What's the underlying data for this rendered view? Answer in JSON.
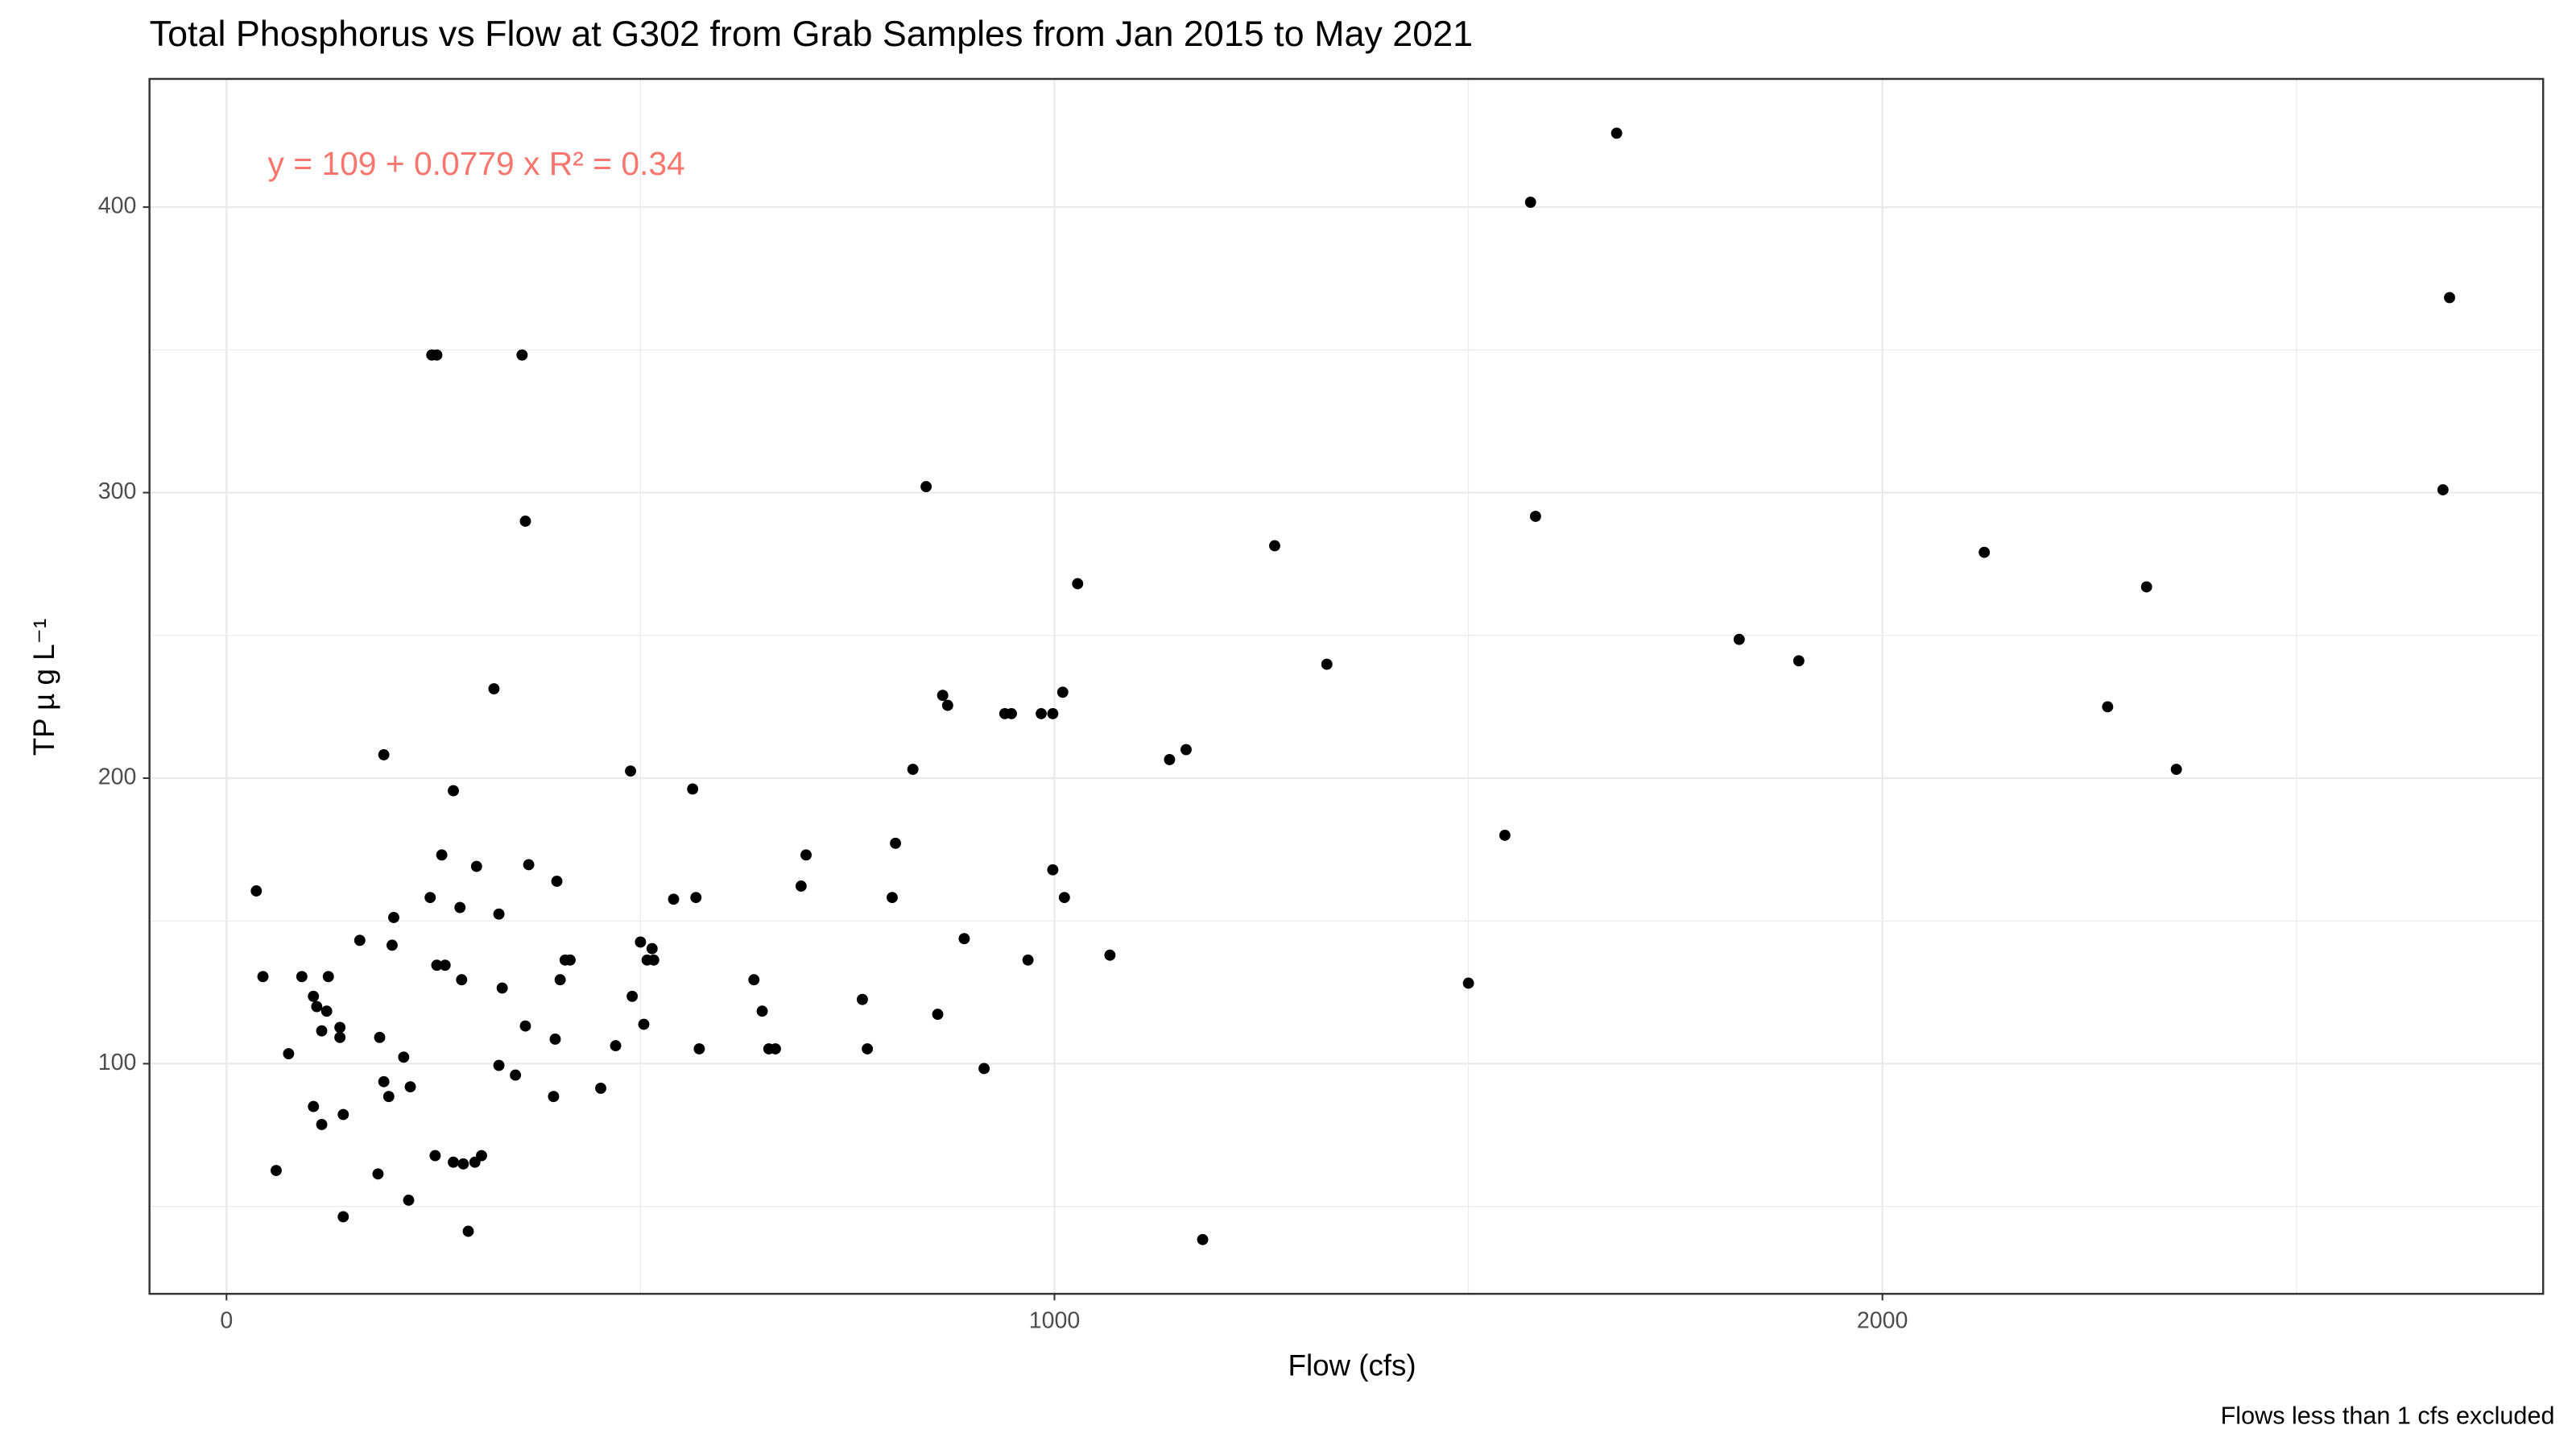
{
  "chart_data": {
    "type": "scatter",
    "title": "Total Phosphorus vs Flow at G302 from Grab Samples from Jan 2015 to May 2021",
    "x_label": "Flow (cfs)",
    "y_label": "TP µ g L⁻¹",
    "annotation": "y = 109 + 0.0779 x   R² = 0.34",
    "annotation_color": "#F8766D",
    "caption": "Flows less than 1 cfs excluded",
    "color": "#000000",
    "grid": true,
    "xlim": [
      -93,
      2798
    ],
    "ylim": [
      19.4,
      444.9
    ],
    "xticks": [
      0,
      1000,
      2000
    ],
    "yticks": [
      100,
      200,
      300,
      400
    ],
    "x_minor_ticks": [
      500,
      1500,
      2500
    ],
    "y_minor_ticks": [
      50,
      150,
      250,
      350
    ],
    "x": [
      36,
      44,
      60,
      75,
      91,
      105,
      109,
      105,
      115,
      115,
      121,
      123,
      137,
      137,
      141,
      141,
      161,
      183,
      185,
      190,
      190,
      196,
      200,
      202,
      214,
      220,
      222,
      246,
      248,
      254,
      252,
      254,
      260,
      264,
      274,
      274,
      282,
      284,
      286,
      292,
      300,
      302,
      308,
      323,
      329,
      329,
      333,
      349,
      357,
      361,
      361,
      365,
      395,
      397,
      399,
      403,
      409,
      415,
      452,
      470,
      488,
      490,
      500,
      504,
      508,
      516,
      514,
      540,
      563,
      567,
      571,
      637,
      647,
      655,
      663,
      694,
      700,
      768,
      774,
      804,
      808,
      829,
      845,
      859,
      865,
      871,
      891,
      915,
      940,
      948,
      968,
      984,
      998,
      998,
      1010,
      1012,
      1028,
      1067,
      1139,
      1159,
      1179,
      1266,
      1329,
      1500,
      1544,
      1575,
      1581,
      1679,
      1827,
      1899,
      2123,
      2272,
      2319,
      2355,
      2677,
      2685
    ],
    "values": [
      160.5,
      130.5,
      62.6,
      103.5,
      130.5,
      123.6,
      120,
      85,
      78.7,
      111.5,
      118.4,
      130.5,
      112.7,
      109.2,
      82.2,
      46.4,
      143.2,
      61.4,
      109.2,
      208.2,
      93.7,
      88.5,
      141.5,
      151.2,
      102.3,
      52.2,
      91.9,
      158.2,
      348.2,
      348.2,
      67.8,
      134.5,
      173.1,
      134.5,
      195.6,
      65.5,
      154.7,
      129.4,
      64.9,
      41.3,
      65.5,
      169.1,
      67.8,
      231.3,
      152.4,
      99.4,
      126.5,
      96,
      348.2,
      290,
      113.2,
      169.7,
      88.5,
      108.6,
      163.9,
      129.4,
      136.3,
      136.3,
      91.4,
      106.3,
      202.5,
      123.6,
      142.6,
      113.8,
      136.3,
      136.3,
      140.3,
      157.6,
      196.2,
      158.2,
      105.2,
      129.4,
      118.4,
      105.2,
      105.2,
      162.2,
      173.1,
      122.5,
      105.2,
      158.2,
      177.2,
      203.1,
      302.1,
      117.3,
      229,
      225.5,
      143.8,
      98.3,
      222.6,
      222.6,
      136.3,
      222.6,
      222.6,
      167.9,
      230.1,
      158.2,
      268.1,
      138,
      206.5,
      210,
      38.4,
      281.4,
      239.9,
      128.2,
      180,
      401.7,
      291.7,
      425.9,
      248.6,
      241.1,
      279.1,
      225,
      267,
      203.1,
      301,
      368.3
    ]
  }
}
